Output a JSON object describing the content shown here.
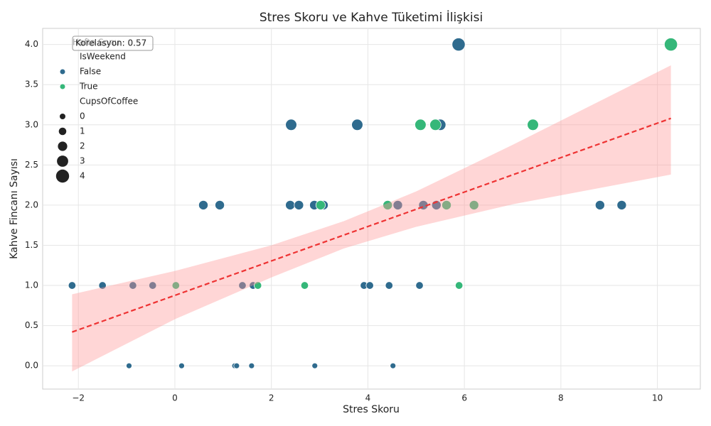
{
  "chart_data": {
    "type": "scatter",
    "title": "Stres Skoru ve Kahve Tüketimi İlişkisi",
    "x_label": "Stres Skoru",
    "y_label": "Kahve Fincanı Sayısı",
    "annotation": "Korelasyon: 0.57",
    "legend_title": "Hafta Sonu",
    "hue_title": "IsWeekend",
    "size_title": "CupsOfCoffee",
    "size_legend": [
      0,
      1,
      2,
      3,
      4
    ],
    "legend_position": "upper left",
    "grid": true,
    "xlim": [
      -2.74,
      10.89
    ],
    "ylim": [
      -0.29,
      4.2
    ],
    "xticks": [
      {
        "value": -2,
        "label": "−2"
      },
      0,
      2,
      4,
      6,
      8,
      10
    ],
    "yticks": [
      {
        "value": 0,
        "label": "0.0"
      },
      {
        "value": 0.5,
        "label": "0.5"
      },
      {
        "value": 1,
        "label": "1.0"
      },
      {
        "value": 1.5,
        "label": "1.5"
      },
      {
        "value": 2,
        "label": "2.0"
      },
      {
        "value": 2.5,
        "label": "2.5"
      },
      {
        "value": 3,
        "label": "3.0"
      },
      {
        "value": 3.5,
        "label": "3.5"
      },
      {
        "value": 4,
        "label": "4.0"
      }
    ],
    "series": [
      {
        "name": "False",
        "color": "#2f6b8e",
        "x": [
          5.88,
          2.41,
          3.78,
          5.5,
          0.59,
          0.93,
          2.39,
          2.57,
          2.89,
          3.08,
          4.62,
          5.15,
          5.42,
          8.81,
          9.26,
          -2.13,
          -1.5,
          -0.87,
          -0.46,
          1.4,
          1.62,
          3.92,
          4.04,
          4.44,
          5.07,
          -0.95,
          0.14,
          1.24,
          1.28,
          1.59,
          2.9,
          4.52
        ],
        "values": [
          4,
          3,
          3,
          3,
          2,
          2,
          2,
          2,
          2,
          2,
          2,
          2,
          2,
          2,
          2,
          1,
          1,
          1,
          1,
          1,
          1,
          1,
          1,
          1,
          1,
          0,
          0,
          0,
          0,
          0,
          0,
          0
        ]
      },
      {
        "name": "True",
        "color": "#35b779",
        "x": [
          10.28,
          5.09,
          5.4,
          7.42,
          3.02,
          4.41,
          5.63,
          6.2,
          0.02,
          1.72,
          2.69,
          5.89
        ],
        "values": [
          4,
          3,
          3,
          3,
          2,
          2,
          2,
          2,
          1,
          1,
          1,
          1
        ]
      }
    ],
    "regression": {
      "color": "#ee3333",
      "x": [
        -2.13,
        10.28
      ],
      "values": [
        0.42,
        3.08
      ]
    },
    "confidence_band": {
      "color": "#ff9999",
      "x": [
        -2.13,
        0,
        2,
        3.5,
        5,
        7,
        10.28
      ],
      "lower": [
        -0.07,
        0.58,
        1.1,
        1.46,
        1.73,
        2.01,
        2.38
      ],
      "upper": [
        0.89,
        1.18,
        1.5,
        1.8,
        2.17,
        2.75,
        3.74
      ]
    }
  }
}
